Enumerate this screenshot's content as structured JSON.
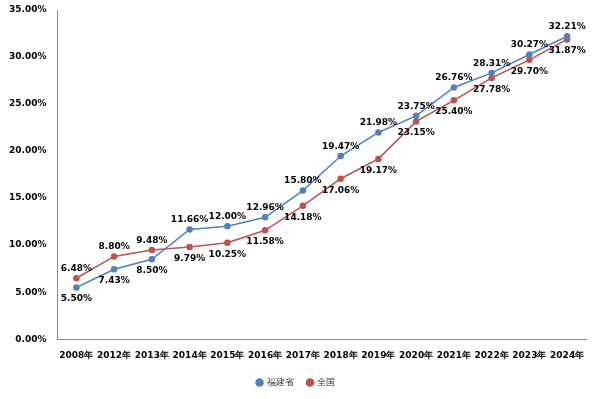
{
  "chart_data": {
    "type": "line",
    "categories": [
      "2008年",
      "2012年",
      "2013年",
      "2014年",
      "2015年",
      "2016年",
      "2017年",
      "2018年",
      "2019年",
      "2020年",
      "2021年",
      "2022年",
      "2023年",
      "2024年"
    ],
    "series": [
      {
        "name": "福建省",
        "color": "#4f81bd",
        "marker": "circle",
        "line_style": "solid",
        "values": [
          5.5,
          7.43,
          8.5,
          11.66,
          12.0,
          12.96,
          15.8,
          19.47,
          21.98,
          23.75,
          26.76,
          28.31,
          30.27,
          32.21
        ],
        "value_labels": [
          "5.50%",
          "7.43%",
          "8.50%",
          "11.66%",
          "12.00%",
          "12.96%",
          "15.80%",
          "19.47%",
          "21.98%",
          "23.75%",
          "26.76%",
          "28.31%",
          "30.27%",
          "32.21%"
        ]
      },
      {
        "name": "全国",
        "color": "#c0504d",
        "marker": "circle",
        "line_style": "solid",
        "values": [
          6.48,
          8.8,
          9.48,
          9.79,
          10.25,
          11.58,
          14.18,
          17.06,
          19.17,
          23.15,
          25.4,
          27.78,
          29.7,
          31.87
        ],
        "value_labels": [
          "6.48%",
          "8.80%",
          "9.48%",
          "9.79%",
          "10.25%",
          "11.58%",
          "14.18%",
          "17.06%",
          "19.17%",
          "23.15%",
          "25.40%",
          "27.78%",
          "29.70%",
          "31.87%"
        ]
      }
    ],
    "ylim": [
      0,
      35
    ],
    "yticks": [
      {
        "value": 0,
        "label": "0.00%"
      },
      {
        "value": 5,
        "label": "5.00%"
      },
      {
        "value": 10,
        "label": "10.00%"
      },
      {
        "value": 15,
        "label": "15.00%"
      },
      {
        "value": 20,
        "label": "20.00%"
      },
      {
        "value": 25,
        "label": "25.00%"
      },
      {
        "value": 30,
        "label": "30.00%"
      },
      {
        "value": 35,
        "label": "35.00%"
      }
    ],
    "grid": false,
    "legend": "bottom",
    "data_labels": true
  }
}
